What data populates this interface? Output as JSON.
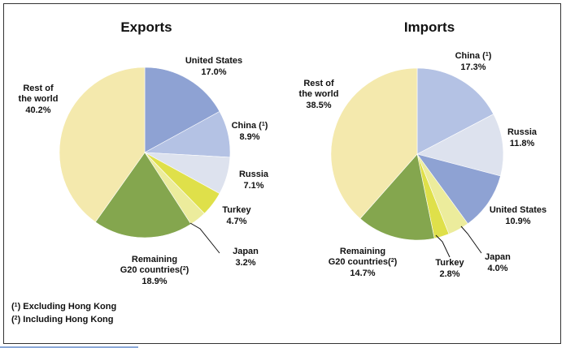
{
  "chart_data": [
    {
      "type": "pie",
      "title": "Exports",
      "slices": [
        {
          "label": "United States",
          "sup": "",
          "value": 17.0,
          "value_text": "17.0%",
          "color": "#8ea2d3"
        },
        {
          "label": "China (",
          "sup": "1",
          "label_after": ")",
          "value": 8.9,
          "value_text": "8.9%",
          "color": "#b4c2e4"
        },
        {
          "label": "Russia",
          "sup": "",
          "value": 7.1,
          "value_text": "7.1%",
          "color": "#dde2ee"
        },
        {
          "label": "Turkey",
          "sup": "",
          "value": 4.7,
          "value_text": "4.7%",
          "color": "#dfe04a"
        },
        {
          "label": "Japan",
          "sup": "",
          "value": 3.2,
          "value_text": "3.2%",
          "color": "#ecec9c"
        },
        {
          "label": "Remaining G20 countries(",
          "sup": "2",
          "label_after": ")",
          "value": 18.9,
          "value_text": "18.9%",
          "color": "#84a64e"
        },
        {
          "label": "Rest of the world",
          "sup": "",
          "value": 40.2,
          "value_text": "40.2%",
          "color": "#f4e9ad"
        }
      ]
    },
    {
      "type": "pie",
      "title": "Imports",
      "slices": [
        {
          "label": "China (",
          "sup": "1",
          "label_after": ")",
          "value": 17.3,
          "value_text": "17.3%",
          "color": "#b4c2e4"
        },
        {
          "label": "Russia",
          "sup": "",
          "value": 11.8,
          "value_text": "11.8%",
          "color": "#dde2ee"
        },
        {
          "label": "United States",
          "sup": "",
          "value": 10.9,
          "value_text": "10.9%",
          "color": "#8ea2d3"
        },
        {
          "label": "Japan",
          "sup": "",
          "value": 4.0,
          "value_text": "4.0%",
          "color": "#ecec9c"
        },
        {
          "label": "Turkey",
          "sup": "",
          "value": 2.8,
          "value_text": "2.8%",
          "color": "#dfe04a"
        },
        {
          "label": "Remaining G20 countries(",
          "sup": "2",
          "label_after": ")",
          "value": 14.7,
          "value_text": "14.7%",
          "color": "#84a64e"
        },
        {
          "label": "Rest of the world",
          "sup": "",
          "value": 38.5,
          "value_text": "38.5%",
          "color": "#f4e9ad"
        }
      ]
    }
  ],
  "footnotes": [
    {
      "pre": "(",
      "sup": "1",
      "text": ") Excluding Hong Kong"
    },
    {
      "pre": "(",
      "sup": "2",
      "text": ") Including Hong Kong"
    }
  ]
}
